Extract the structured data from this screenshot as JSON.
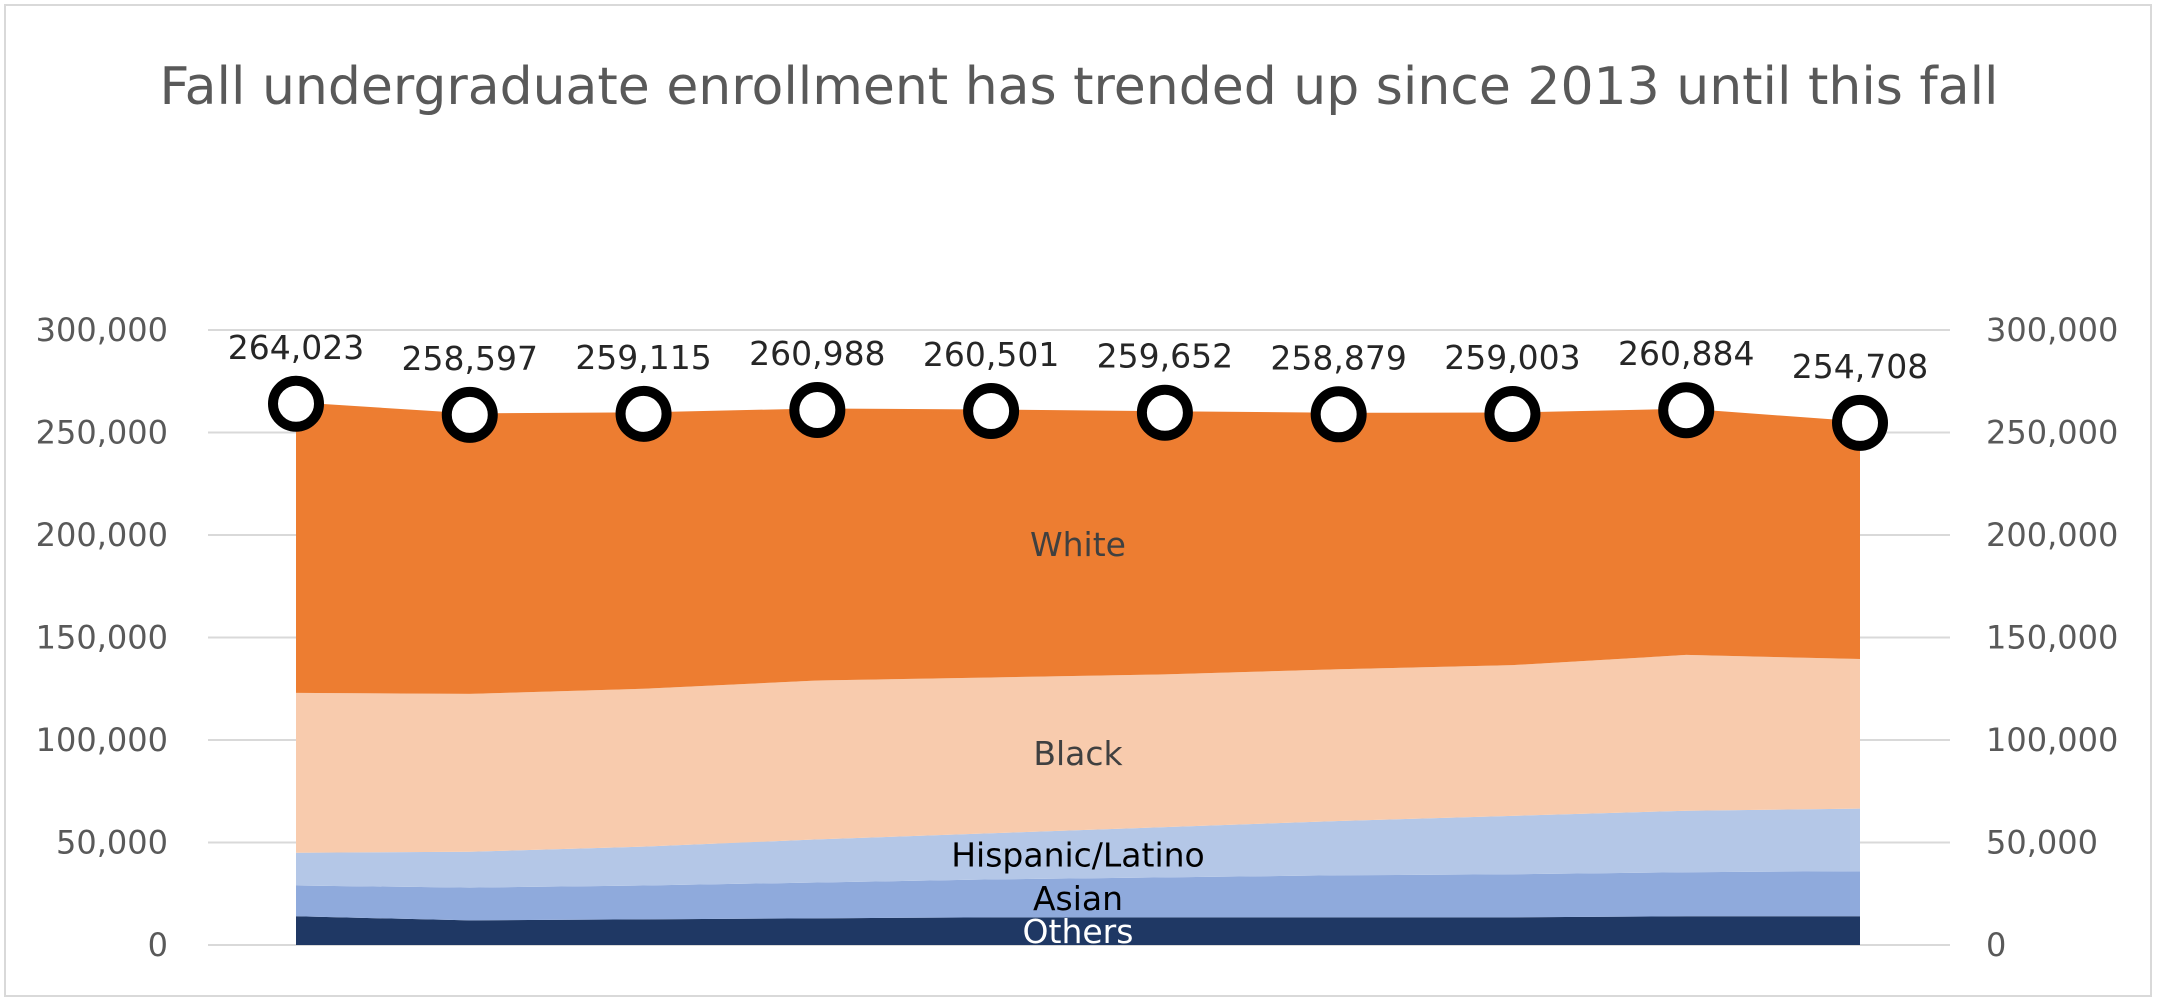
{
  "chart_data": {
    "type": "area",
    "stacked": true,
    "title": "Fall undergraduate enrollment has trended up since 2013 until this fall",
    "xlabel": "",
    "ylabel": "",
    "ylim": [
      0,
      300000
    ],
    "y_ticks": [
      "0",
      "50,000",
      "100,000",
      "150,000",
      "200,000",
      "250,000",
      "300,000"
    ],
    "y_tick_values": [
      0,
      50000,
      100000,
      150000,
      200000,
      250000,
      300000
    ],
    "secondary_axis": true,
    "grid": true,
    "legend": "none",
    "x_count": 10,
    "series": [
      {
        "name": "Others",
        "color": "#1f3864",
        "label_color": "#ffffff",
        "values": [
          14000,
          12000,
          12500,
          13000,
          13500,
          13500,
          13500,
          13500,
          14000,
          14000
        ]
      },
      {
        "name": "Asian",
        "color": "#8faadc",
        "label_color": "#000000",
        "values": [
          15000,
          16000,
          16500,
          17500,
          18500,
          19500,
          20500,
          21000,
          21500,
          22000
        ]
      },
      {
        "name": "Hispanic/Latino",
        "color": "#b4c7e7",
        "label_color": "#000000",
        "values": [
          16000,
          17500,
          19000,
          21000,
          22500,
          24500,
          26500,
          28500,
          30000,
          30500
        ]
      },
      {
        "name": "Black",
        "color": "#f8cbad",
        "label_color": "#404040",
        "values": [
          78000,
          77000,
          77000,
          77500,
          76000,
          74500,
          74000,
          73500,
          76000,
          73000
        ]
      },
      {
        "name": "White",
        "color": "#ed7d31",
        "label_color": "#404040",
        "values": [
          141023,
          136097,
          134115,
          131988,
          130001,
          127652,
          124379,
          122503,
          119384,
          115208
        ]
      }
    ],
    "totals": [
      264023,
      258597,
      259115,
      260988,
      260501,
      259652,
      258879,
      259003,
      260884,
      254708
    ],
    "total_labels": [
      "264,023",
      "258,597",
      "259,115",
      "260,988",
      "260,501",
      "259,652",
      "258,879",
      "259,003",
      "260,884",
      "254,708"
    ]
  }
}
